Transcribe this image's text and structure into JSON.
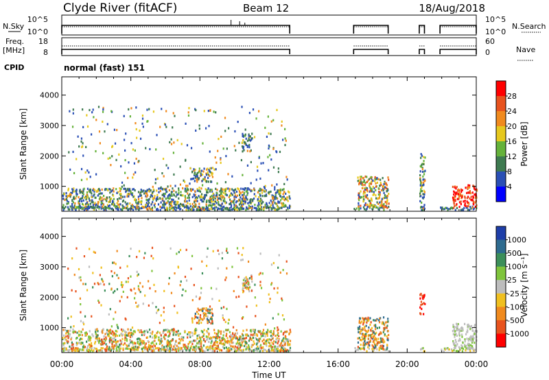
{
  "header": {
    "station": "Clyde River (fitACF)",
    "beam": "Beam 12",
    "date": "18/Aug/2018"
  },
  "strip_labels": {
    "nsky": "N.Sky",
    "nsky_ticks": [
      "10^5",
      "10^0"
    ],
    "nsearch": "N.Search",
    "nsearch_ticks": [
      "10^5",
      "10^0"
    ],
    "freq_line1": "Freq.",
    "freq_line2": "[MHz]",
    "freq_ticks": [
      "18",
      "8"
    ],
    "nave": "Nave",
    "nave_ticks": [
      "60",
      "0"
    ],
    "cpid": "CPID",
    "cpid_value": "normal (fast) 151"
  },
  "axes": {
    "y_label": "Slant Range [km]",
    "y_ticks": [
      "1000",
      "2000",
      "3000",
      "4000"
    ],
    "x_label": "Time UT",
    "x_ticks": [
      "00:00",
      "04:00",
      "08:00",
      "12:00",
      "16:00",
      "20:00",
      "00:00"
    ]
  },
  "colorbars": {
    "power": {
      "label": "Power [dB]",
      "ticks": [
        "4",
        "8",
        "12",
        "16",
        "20",
        "24",
        "28"
      ],
      "colors": [
        "#0000ff",
        "#2a4fb5",
        "#3e7a50",
        "#65b23a",
        "#e6c81e",
        "#f08a1e",
        "#e8531e",
        "#ff0000"
      ]
    },
    "velocity": {
      "label": "Velocity [m s⁻¹]",
      "ticks": [
        "1000",
        "500",
        "100",
        "25",
        "-25",
        "-100",
        "-500",
        "-1000"
      ],
      "colors": [
        "#1e3ea8",
        "#2e6b8f",
        "#3c8f5a",
        "#7fc43c",
        "#bdbdbd",
        "#f0c020",
        "#f08a1e",
        "#e8531e",
        "#ff0000"
      ]
    }
  },
  "chart_data": {
    "type": "heatmap",
    "x_range_hours": [
      0,
      24
    ],
    "y_range_km": [
      180,
      4600
    ],
    "data_intervals_ut": [
      [
        0.0,
        13.2
      ],
      [
        16.9,
        18.9
      ],
      [
        20.7,
        21.0
      ],
      [
        21.9,
        24.0
      ]
    ],
    "frequency_mhz": {
      "min": 8,
      "max": 18
    },
    "nave": {
      "min": 0,
      "max": 60
    },
    "panels": [
      {
        "quantity": "Power",
        "unit": "dB",
        "echo_regions": [
          {
            "t_start": 0.0,
            "t_end": 13.2,
            "range_km": [
              180,
              900
            ],
            "dominant_db": 8
          },
          {
            "t_start": 7.5,
            "t_end": 8.7,
            "range_km": [
              1100,
              1600
            ],
            "dominant_db": 12
          },
          {
            "t_start": 10.4,
            "t_end": 11.0,
            "range_km": [
              2100,
              2700
            ],
            "dominant_db": 12
          },
          {
            "t_start": 17.1,
            "t_end": 18.9,
            "range_km": [
              250,
              1300
            ],
            "dominant_db": 20
          },
          {
            "t_start": 20.7,
            "t_end": 21.0,
            "range_km": [
              200,
              2100
            ],
            "dominant_db": 8
          },
          {
            "t_start": 22.6,
            "t_end": 24.0,
            "range_km": [
              250,
              1000
            ],
            "dominant_db": 28
          }
        ]
      },
      {
        "quantity": "Velocity",
        "unit": "m s-1",
        "echo_regions": [
          {
            "t_start": 0.0,
            "t_end": 13.2,
            "range_km": [
              180,
              900
            ],
            "dominant_ms": 100
          },
          {
            "t_start": 7.5,
            "t_end": 8.7,
            "range_km": [
              1100,
              1600
            ],
            "dominant_ms": -500
          },
          {
            "t_start": 10.4,
            "t_end": 11.0,
            "range_km": [
              2100,
              2700
            ],
            "dominant_ms": -100
          },
          {
            "t_start": 17.1,
            "t_end": 18.9,
            "range_km": [
              250,
              1300
            ],
            "dominant_ms": -500
          },
          {
            "t_start": 20.7,
            "t_end": 21.0,
            "range_km": [
              1400,
              2100
            ],
            "dominant_ms": -1000
          },
          {
            "t_start": 22.6,
            "t_end": 24.0,
            "range_km": [
              250,
              1100
            ],
            "dominant_ms": 0
          }
        ]
      }
    ]
  }
}
